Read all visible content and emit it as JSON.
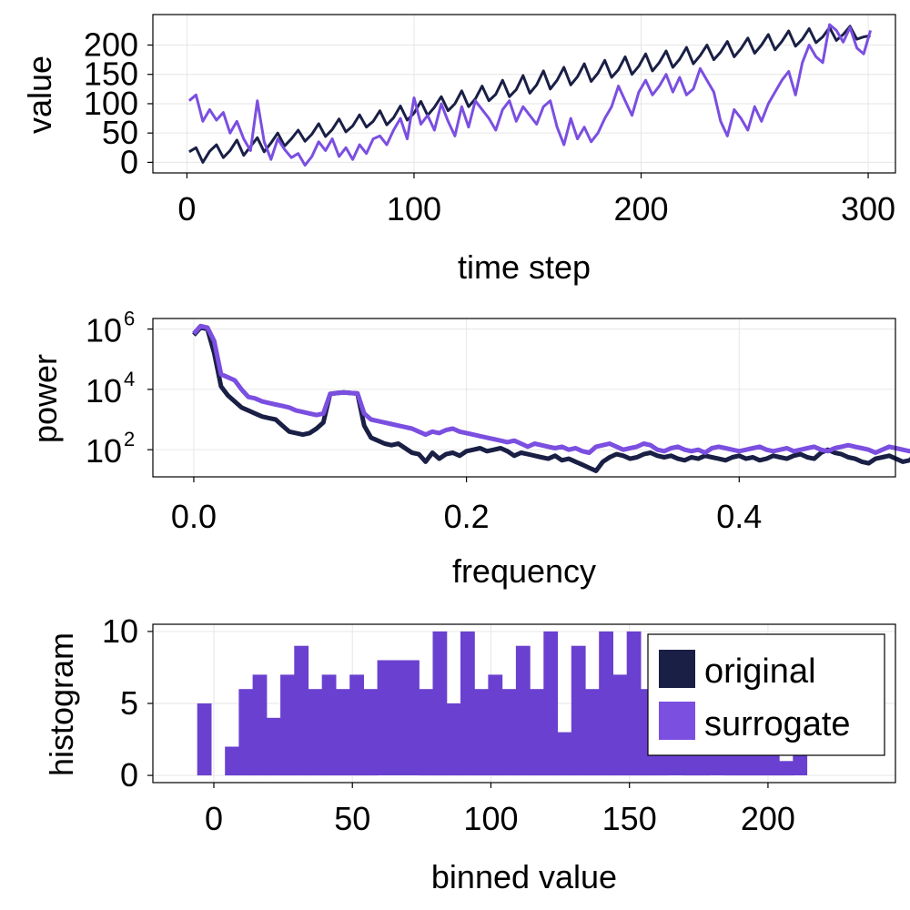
{
  "colors": {
    "original": "#1a1f45",
    "surrogate": "#7b4fe0",
    "overlap": "#6a40d0"
  },
  "chart_data": [
    {
      "type": "line",
      "xlabel": "time step",
      "ylabel": "value",
      "xlim": [
        -15,
        312
      ],
      "ylim": [
        -18,
        252
      ],
      "xticks": [
        0,
        100,
        200,
        300
      ],
      "yticks": [
        0,
        50,
        100,
        150,
        200
      ],
      "grid": true,
      "series": [
        {
          "name": "original",
          "x_start": 1,
          "x_step": 3,
          "values": [
            18,
            25,
            0,
            19,
            30,
            8,
            20,
            38,
            12,
            27,
            42,
            18,
            33,
            50,
            28,
            40,
            55,
            36,
            48,
            66,
            44,
            56,
            74,
            52,
            62,
            81,
            60,
            70,
            88,
            64,
            76,
            96,
            72,
            84,
            104,
            80,
            94,
            112,
            88,
            100,
            122,
            95,
            108,
            130,
            105,
            116,
            140,
            112,
            124,
            148,
            118,
            132,
            156,
            125,
            140,
            162,
            132,
            146,
            168,
            138,
            152,
            174,
            145,
            158,
            180,
            150,
            164,
            185,
            156,
            170,
            190,
            162,
            176,
            196,
            168,
            182,
            200,
            175,
            188,
            206,
            180,
            194,
            212,
            186,
            200,
            218,
            192,
            206,
            224,
            198,
            210,
            228,
            204,
            214,
            230,
            208,
            218,
            232,
            210,
            214,
            216
          ]
        },
        {
          "name": "surrogate",
          "x_start": 1,
          "x_step": 3,
          "values": [
            105,
            115,
            70,
            90,
            72,
            85,
            50,
            70,
            40,
            20,
            105,
            35,
            5,
            40,
            22,
            8,
            15,
            -5,
            10,
            35,
            20,
            40,
            10,
            25,
            5,
            30,
            15,
            40,
            45,
            30,
            55,
            75,
            40,
            110,
            65,
            80,
            55,
            100,
            70,
            45,
            95,
            60,
            105,
            90,
            75,
            55,
            90,
            105,
            70,
            95,
            80,
            65,
            95,
            105,
            60,
            30,
            75,
            40,
            60,
            35,
            50,
            75,
            95,
            130,
            105,
            80,
            120,
            140,
            115,
            130,
            150,
            120,
            145,
            115,
            125,
            160,
            140,
            120,
            70,
            45,
            90,
            75,
            55,
            95,
            70,
            100,
            120,
            140,
            155,
            115,
            170,
            200,
            180,
            170,
            235,
            225,
            205,
            230,
            195,
            185,
            225
          ]
        }
      ]
    },
    {
      "type": "line",
      "xlabel": "frequency",
      "ylabel": "power",
      "yscale": "log",
      "xlim": [
        -0.03,
        0.5146
      ],
      "ylim_log10": [
        1.1,
        6.35
      ],
      "xticks": [
        0.0,
        0.2,
        0.4
      ],
      "xtick_labels": [
        "0.0",
        "0.2",
        "0.4"
      ],
      "yticks_log10": [
        2,
        4,
        6
      ],
      "ytick_bases": [
        "10",
        "10",
        "10"
      ],
      "ytick_exps": [
        "2",
        "4",
        "6"
      ],
      "grid": true,
      "series": [
        {
          "name": "original",
          "x_start": 0.0,
          "x_step": 0.005,
          "values_log10": [
            5.8,
            6.05,
            6.0,
            5.2,
            4.1,
            3.8,
            3.6,
            3.4,
            3.3,
            3.2,
            3.1,
            3.05,
            3.0,
            2.8,
            2.6,
            2.55,
            2.5,
            2.55,
            2.7,
            2.9,
            3.85,
            3.88,
            3.9,
            3.88,
            3.86,
            2.8,
            2.4,
            2.3,
            2.2,
            2.15,
            2.2,
            2.05,
            1.9,
            1.85,
            1.6,
            1.9,
            1.7,
            1.85,
            1.9,
            1.8,
            1.95,
            2.0,
            2.05,
            1.95,
            2.0,
            2.05,
            1.95,
            1.8,
            1.9,
            1.85,
            1.8,
            1.75,
            1.7,
            1.8,
            1.65,
            1.7,
            1.6,
            1.5,
            1.4,
            1.3,
            1.6,
            1.75,
            1.85,
            1.8,
            1.7,
            1.75,
            1.85,
            1.9,
            1.8,
            1.75,
            1.8,
            1.7,
            1.65,
            1.75,
            1.7,
            1.8,
            1.75,
            1.7,
            1.65,
            1.75,
            1.8,
            1.7,
            1.75,
            1.65,
            1.7,
            1.8,
            1.75,
            1.7,
            1.8,
            1.85,
            1.75,
            1.7,
            1.9,
            2.0,
            1.9,
            1.85,
            1.75,
            1.7,
            1.6,
            1.55,
            1.7,
            1.75,
            1.8,
            1.7,
            1.6,
            1.65,
            1.85,
            1.9,
            1.8,
            1.75,
            1.7,
            1.6,
            1.55,
            1.75,
            1.85,
            1.9,
            1.85,
            1.8,
            1.75,
            1.55,
            1.6,
            1.7,
            1.65,
            1.75,
            1.8,
            1.7,
            1.55,
            1.7,
            1.85,
            1.95,
            1.95,
            1.9,
            1.85,
            1.5,
            1.6,
            1.65,
            1.7,
            1.8,
            1.85,
            1.75,
            1.6,
            1.45,
            1.6,
            1.75,
            1.8,
            1.8,
            1.35
          ]
        },
        {
          "name": "surrogate",
          "x_start": 0.0,
          "x_step": 0.005,
          "values_log10": [
            5.85,
            6.1,
            6.05,
            5.6,
            4.5,
            4.4,
            4.3,
            4.0,
            3.75,
            3.7,
            3.6,
            3.55,
            3.5,
            3.45,
            3.4,
            3.3,
            3.25,
            3.2,
            3.15,
            3.2,
            3.85,
            3.88,
            3.9,
            3.88,
            3.87,
            3.2,
            3.0,
            2.95,
            2.9,
            2.85,
            2.8,
            2.75,
            2.7,
            2.6,
            2.5,
            2.6,
            2.55,
            2.65,
            2.7,
            2.6,
            2.55,
            2.5,
            2.45,
            2.4,
            2.35,
            2.3,
            2.25,
            2.3,
            2.2,
            2.1,
            2.2,
            2.15,
            2.1,
            2.05,
            2.1,
            2.0,
            2.05,
            1.95,
            1.9,
            2.1,
            2.15,
            2.2,
            2.1,
            2.0,
            2.05,
            2.1,
            2.2,
            2.15,
            2.0,
            1.95,
            2.05,
            2.1,
            2.0,
            1.95,
            2.0,
            1.9,
            2.05,
            2.1,
            2.05,
            2.0,
            1.95,
            2.0,
            2.05,
            2.1,
            2.0,
            1.95,
            2.0,
            2.05,
            1.95,
            2.0,
            2.05,
            2.1,
            2.0,
            1.95,
            2.05,
            2.1,
            2.15,
            2.1,
            2.05,
            2.0,
            1.9,
            2.0,
            2.1,
            2.05,
            2.0,
            1.95,
            2.0,
            2.05,
            2.0,
            1.95,
            2.0,
            2.1,
            2.2,
            2.25,
            2.15,
            2.1,
            2.05,
            2.1,
            2.2,
            2.15,
            2.1,
            2.05,
            2.0,
            2.1,
            2.15,
            2.2,
            2.1,
            2.05,
            2.0,
            2.1,
            2.2,
            2.25,
            2.2,
            2.15,
            2.1,
            2.0,
            2.1,
            2.15,
            2.2,
            2.1,
            2.05,
            2.2,
            2.15,
            2.1,
            2.25,
            2.3,
            2.0
          ]
        }
      ]
    },
    {
      "type": "bar",
      "xlabel": "binned value",
      "ylabel": "histogram",
      "xlim": [
        -22,
        246
      ],
      "ylim": [
        -0.5,
        10.5
      ],
      "xticks": [
        0,
        50,
        100,
        150,
        200
      ],
      "yticks": [
        0,
        5,
        10
      ],
      "grid": true,
      "legend_position": "top-right",
      "legend": [
        "original",
        "surrogate"
      ],
      "bin_start": -6,
      "bin_width": 5,
      "series": [
        {
          "name": "original",
          "values": [
            5,
            0,
            2,
            6,
            7,
            4,
            7,
            9,
            6,
            7,
            6,
            7,
            6,
            8,
            8,
            8,
            6,
            10,
            5,
            10,
            6,
            7,
            6,
            9,
            6,
            10,
            3,
            9,
            6,
            10,
            7,
            10,
            6,
            9,
            8,
            7,
            6,
            8,
            5,
            6,
            7,
            7,
            1,
            8
          ]
        },
        {
          "name": "surrogate",
          "values": [
            5,
            0,
            2,
            6,
            7,
            4,
            7,
            9,
            6,
            7,
            6,
            7,
            6,
            8,
            8,
            8,
            6,
            10,
            5,
            10,
            6,
            7,
            6,
            9,
            6,
            10,
            3,
            9,
            6,
            10,
            7,
            10,
            6,
            9,
            8,
            7,
            6,
            8,
            5,
            6,
            7,
            7,
            1,
            8
          ]
        }
      ]
    }
  ]
}
